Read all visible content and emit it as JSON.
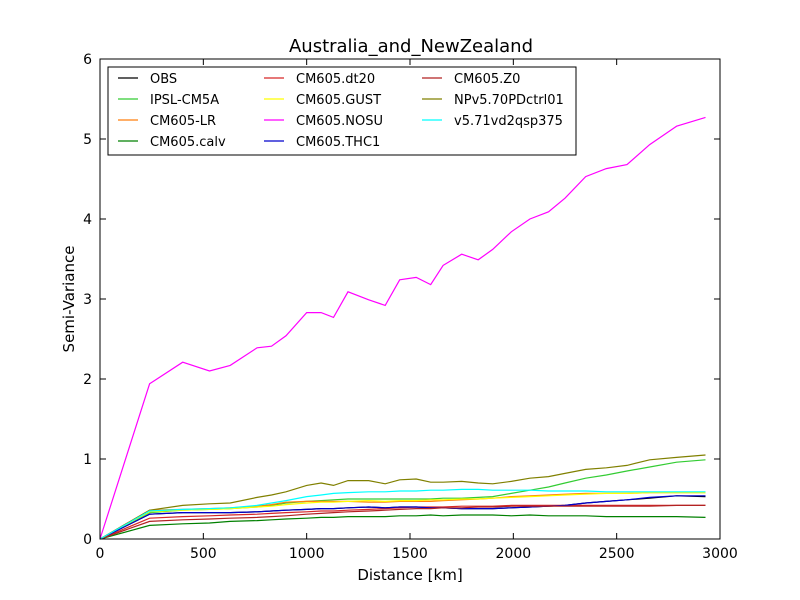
{
  "chart_data": {
    "type": "line",
    "title": "Australia_and_NewZealand",
    "xlabel": "Distance [km]",
    "ylabel": "Semi-Variance",
    "xlim": [
      0,
      3000
    ],
    "ylim": [
      0,
      6
    ],
    "xticks": [
      0,
      500,
      1000,
      1500,
      2000,
      2500,
      3000
    ],
    "yticks": [
      0,
      1,
      2,
      3,
      4,
      5,
      6
    ],
    "grid": false,
    "legend_position": "top-left",
    "legend_columns": 3,
    "x": [
      0,
      240,
      400,
      530,
      630,
      760,
      830,
      900,
      1000,
      1070,
      1130,
      1200,
      1300,
      1380,
      1450,
      1530,
      1600,
      1660,
      1750,
      1830,
      1900,
      1990,
      2080,
      2170,
      2250,
      2350,
      2450,
      2550,
      2660,
      2790,
      2930
    ],
    "series": [
      {
        "name": "OBS",
        "color": "#000000",
        "values": [
          0,
          0.31,
          0.33,
          0.33,
          0.33,
          0.34,
          0.35,
          0.36,
          0.37,
          0.38,
          0.38,
          0.39,
          0.4,
          0.39,
          0.4,
          0.4,
          0.39,
          0.39,
          0.38,
          0.38,
          0.38,
          0.39,
          0.4,
          0.41,
          0.42,
          0.45,
          0.47,
          0.49,
          0.51,
          0.54,
          0.53
        ]
      },
      {
        "name": "IPSL-CM5A",
        "color": "#33cc33",
        "values": [
          0,
          0.33,
          0.36,
          0.37,
          0.38,
          0.4,
          0.42,
          0.45,
          0.47,
          0.48,
          0.49,
          0.5,
          0.5,
          0.5,
          0.5,
          0.5,
          0.5,
          0.51,
          0.51,
          0.52,
          0.53,
          0.57,
          0.61,
          0.65,
          0.7,
          0.76,
          0.8,
          0.85,
          0.9,
          0.96,
          0.99
        ]
      },
      {
        "name": "CM605-LR",
        "color": "#ff7f0e",
        "values": [
          0,
          0.36,
          0.37,
          0.38,
          0.39,
          0.41,
          0.43,
          0.46,
          0.47,
          0.47,
          0.47,
          0.47,
          0.46,
          0.46,
          0.47,
          0.47,
          0.47,
          0.48,
          0.49,
          0.5,
          0.51,
          0.53,
          0.54,
          0.55,
          0.56,
          0.57,
          0.57,
          0.57,
          0.58,
          0.58,
          0.58
        ]
      },
      {
        "name": "CM605.calv",
        "color": "#008000",
        "values": [
          0,
          0.17,
          0.19,
          0.2,
          0.22,
          0.23,
          0.24,
          0.25,
          0.26,
          0.27,
          0.27,
          0.28,
          0.28,
          0.28,
          0.29,
          0.29,
          0.3,
          0.29,
          0.3,
          0.3,
          0.3,
          0.29,
          0.3,
          0.29,
          0.29,
          0.29,
          0.28,
          0.28,
          0.28,
          0.28,
          0.27
        ]
      },
      {
        "name": "CM605.dt20",
        "color": "#d62728",
        "values": [
          0,
          0.26,
          0.28,
          0.29,
          0.3,
          0.31,
          0.32,
          0.33,
          0.34,
          0.35,
          0.35,
          0.36,
          0.37,
          0.38,
          0.39,
          0.4,
          0.4,
          0.4,
          0.41,
          0.41,
          0.41,
          0.42,
          0.42,
          0.42,
          0.42,
          0.42,
          0.42,
          0.42,
          0.42,
          0.42,
          0.42
        ]
      },
      {
        "name": "CM605.GUST",
        "color": "#ffff00",
        "values": [
          0,
          0.34,
          0.36,
          0.37,
          0.38,
          0.4,
          0.41,
          0.43,
          0.45,
          0.46,
          0.46,
          0.47,
          0.48,
          0.47,
          0.48,
          0.48,
          0.49,
          0.49,
          0.5,
          0.5,
          0.51,
          0.52,
          0.53,
          0.54,
          0.55,
          0.56,
          0.57,
          0.57,
          0.58,
          0.58,
          0.58
        ]
      },
      {
        "name": "CM605.NOSU",
        "color": "#ff00ff",
        "values": [
          0,
          1.94,
          2.21,
          2.1,
          2.17,
          2.39,
          2.41,
          2.54,
          2.83,
          2.83,
          2.77,
          3.09,
          2.99,
          2.92,
          3.24,
          3.27,
          3.18,
          3.42,
          3.56,
          3.49,
          3.62,
          3.84,
          4.0,
          4.09,
          4.26,
          4.53,
          4.63,
          4.68,
          4.93,
          5.16,
          5.27
        ]
      },
      {
        "name": "CM605.THC1",
        "color": "#0000cc",
        "values": [
          0,
          0.31,
          0.33,
          0.33,
          0.33,
          0.34,
          0.35,
          0.36,
          0.37,
          0.38,
          0.38,
          0.39,
          0.4,
          0.39,
          0.4,
          0.4,
          0.39,
          0.39,
          0.38,
          0.38,
          0.38,
          0.39,
          0.4,
          0.41,
          0.42,
          0.45,
          0.47,
          0.49,
          0.52,
          0.54,
          0.54
        ]
      },
      {
        "name": "CM605.Z0",
        "color": "#b22222",
        "values": [
          0,
          0.22,
          0.24,
          0.25,
          0.26,
          0.27,
          0.28,
          0.29,
          0.31,
          0.32,
          0.33,
          0.34,
          0.35,
          0.36,
          0.37,
          0.38,
          0.38,
          0.39,
          0.39,
          0.4,
          0.4,
          0.41,
          0.41,
          0.41,
          0.41,
          0.41,
          0.41,
          0.41,
          0.41,
          0.42,
          0.42
        ]
      },
      {
        "name": "NPv5.70PDctrl01",
        "color": "#808000",
        "values": [
          0,
          0.36,
          0.42,
          0.44,
          0.45,
          0.52,
          0.55,
          0.59,
          0.67,
          0.7,
          0.67,
          0.73,
          0.73,
          0.69,
          0.74,
          0.75,
          0.71,
          0.71,
          0.72,
          0.7,
          0.69,
          0.72,
          0.76,
          0.78,
          0.82,
          0.87,
          0.89,
          0.92,
          0.99,
          1.02,
          1.05
        ]
      },
      {
        "name": "v5.71vd2qsp375",
        "color": "#00ffff",
        "values": [
          0,
          0.35,
          0.37,
          0.38,
          0.39,
          0.42,
          0.45,
          0.48,
          0.53,
          0.55,
          0.57,
          0.58,
          0.59,
          0.59,
          0.6,
          0.6,
          0.61,
          0.61,
          0.62,
          0.62,
          0.61,
          0.61,
          0.61,
          0.6,
          0.6,
          0.6,
          0.59,
          0.59,
          0.59,
          0.59,
          0.59
        ]
      }
    ]
  }
}
